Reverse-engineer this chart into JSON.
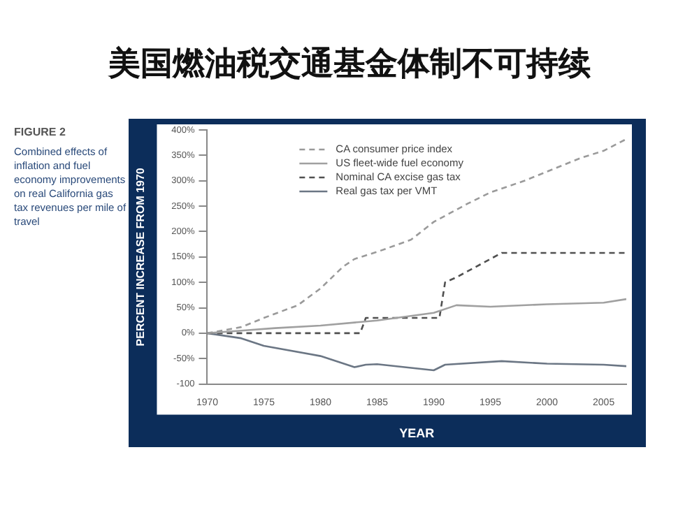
{
  "chart_data": {
    "type": "line",
    "title": "美国燃油税交通基金体制不可持续",
    "xlabel": "YEAR",
    "ylabel": "PERCENT INCREASE FROM 1970",
    "annotations": [
      "FIGURE 2",
      "Combined effects of inflation and fuel economy improvements on real California gas tax revenues per mile of travel"
    ],
    "xlim": [
      1970,
      2007
    ],
    "xticks": [
      1970,
      1975,
      1980,
      1985,
      1990,
      1995,
      2000,
      2005
    ],
    "ylim": [
      -100,
      400
    ],
    "yticks": [
      {
        "value": -100,
        "label": "-100"
      },
      {
        "value": -50,
        "label": "-50%"
      },
      {
        "value": 0,
        "label": "0%"
      },
      {
        "value": 50,
        "label": "50%"
      },
      {
        "value": 100,
        "label": "100%"
      },
      {
        "value": 150,
        "label": "150%"
      },
      {
        "value": 200,
        "label": "200%"
      },
      {
        "value": 250,
        "label": "250%"
      },
      {
        "value": 300,
        "label": "300%"
      },
      {
        "value": 350,
        "label": "350%"
      },
      {
        "value": 400,
        "label": "400%"
      }
    ],
    "grid": false,
    "legend": "top left",
    "marker": "none",
    "series": [
      {
        "name": "CA consumer price index",
        "color": "#9a9a9a",
        "line_style": "dashed",
        "x": [
          1970,
          1973,
          1975,
          1978,
          1980,
          1982,
          1983,
          1985,
          1988,
          1990,
          1993,
          1995,
          1998,
          2000,
          2003,
          2005,
          2007
        ],
        "values": [
          0,
          12,
          30,
          55,
          88,
          131,
          146,
          160,
          184,
          219,
          255,
          277,
          300,
          318,
          345,
          359,
          382
        ]
      },
      {
        "name": "US fleet-wide fuel economy",
        "color": "#a0a0a0",
        "line_style": "solid",
        "x": [
          1970,
          1973,
          1976,
          1980,
          1985,
          1990,
          1992,
          1995,
          2000,
          2005,
          2007
        ],
        "values": [
          0,
          5,
          10,
          15,
          25,
          40,
          55,
          52,
          57,
          60,
          67
        ]
      },
      {
        "name": "Nominal CA excise gas tax",
        "color": "#505050",
        "line_style": "dashed",
        "x": [
          1970,
          1983.5,
          1984,
          1990.5,
          1991,
          1992,
          1996,
          2007
        ],
        "values": [
          0,
          0,
          30,
          30,
          100,
          110,
          158,
          158
        ]
      },
      {
        "name": "Real gas tax per VMT",
        "color": "#6b7684",
        "line_style": "solid",
        "x": [
          1970,
          1973,
          1975,
          1980,
          1983,
          1984,
          1985,
          1990,
          1991,
          1996,
          2000,
          2005,
          2007
        ],
        "values": [
          0,
          -10,
          -25,
          -45,
          -67,
          -62,
          -61,
          -73,
          -62,
          -55,
          -60,
          -62,
          -65
        ]
      }
    ]
  }
}
